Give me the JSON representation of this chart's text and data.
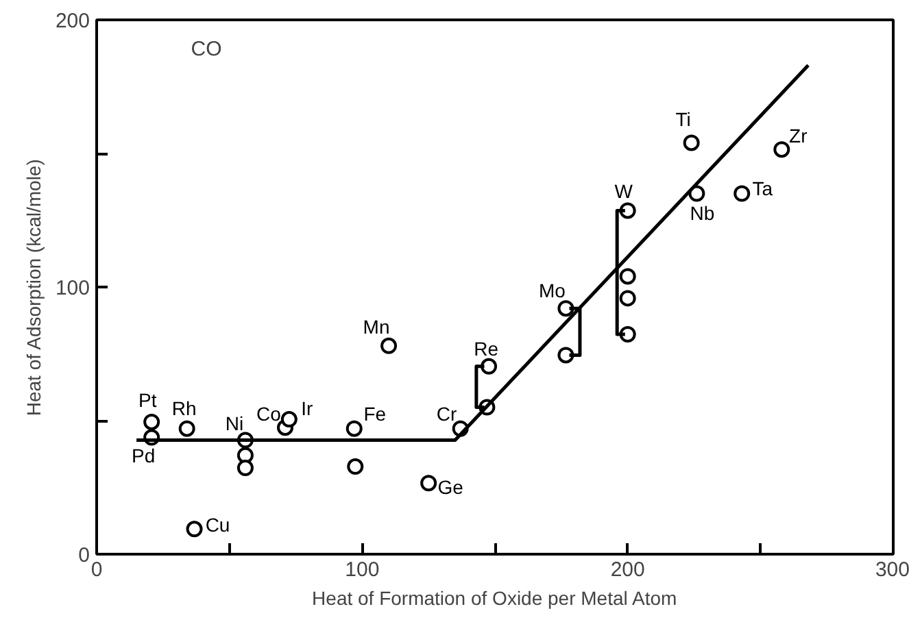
{
  "chart_data": {
    "type": "scatter",
    "xlabel": "Heat of Formation of Oxide per Metal Atom",
    "ylabel": "Heat of Adsorption (kcal/mole)",
    "xlim": [
      0,
      300
    ],
    "ylim": [
      0,
      200
    ],
    "xticks": [
      0,
      {
        "value": 50,
        "label": null
      },
      100,
      {
        "value": 150,
        "label": null
      },
      200,
      {
        "value": 250,
        "label": null
      },
      300
    ],
    "yticks": [
      0,
      {
        "value": 50,
        "label": null
      },
      100,
      {
        "value": 150,
        "label": null
      },
      200
    ],
    "grid": false,
    "marker": "circle",
    "series": [
      {
        "color": "#000000",
        "x": [
          20.7,
          20.7,
          34,
          56,
          56,
          56,
          71,
          72.5,
          97,
          97.4,
          125,
          36.8,
          137,
          110,
          147.7,
          147,
          176.7,
          176.7,
          200,
          200,
          200,
          200,
          224,
          226,
          243,
          258
        ],
        "values": [
          49.5,
          43.7,
          47,
          42.7,
          37,
          32.3,
          47.4,
          50.5,
          47,
          32.8,
          26.6,
          9.4,
          47,
          78,
          70.3,
          55,
          92,
          74.5,
          128.6,
          104,
          95.8,
          82.3,
          154,
          135,
          135,
          151.5
        ]
      },
      {
        "type": "line",
        "marker": "none",
        "color": "#000000",
        "x": [
          15,
          135,
          268
        ],
        "values": [
          42.7,
          42.7,
          183
        ]
      },
      {
        "type": "line",
        "marker": "none",
        "color": "#000000",
        "x": [
          146,
          143,
          143,
          146
        ],
        "values": [
          70.3,
          70.3,
          55,
          55
        ]
      },
      {
        "type": "line",
        "marker": "none",
        "color": "#000000",
        "x": [
          178,
          182,
          182,
          178
        ],
        "values": [
          92,
          92,
          74.5,
          74.5
        ]
      },
      {
        "type": "line",
        "marker": "none",
        "color": "#000000",
        "x": [
          199,
          196,
          196,
          199
        ],
        "values": [
          128.6,
          128.6,
          82.3,
          82.3
        ]
      }
    ],
    "annotations": [
      {
        "text": "Pt",
        "x": 20.7,
        "y": 49.5
      },
      {
        "text": "Pd",
        "x": 20.7,
        "y": 43.7
      },
      {
        "text": "Rh",
        "x": 34,
        "y": 47
      },
      {
        "text": "Ni",
        "x": 56,
        "y": 42.7
      },
      {
        "text": "Co",
        "x": 71,
        "y": 47.4
      },
      {
        "text": "Ir",
        "x": 72.5,
        "y": 50.5
      },
      {
        "text": "Fe",
        "x": 97,
        "y": 47
      },
      {
        "text": "Cr",
        "x": 137,
        "y": 47
      },
      {
        "text": "Ge",
        "x": 125,
        "y": 26.6
      },
      {
        "text": "Cu",
        "x": 36.8,
        "y": 9.4
      },
      {
        "text": "Mn",
        "x": 110,
        "y": 78
      },
      {
        "text": "Re",
        "x": 147.7,
        "y": 70.3
      },
      {
        "text": "Mo",
        "x": 176.7,
        "y": 92
      },
      {
        "text": "W",
        "x": 200,
        "y": 128.6
      },
      {
        "text": "Ti",
        "x": 224,
        "y": 154
      },
      {
        "text": "Nb",
        "x": 226,
        "y": 135
      },
      {
        "text": "Ta",
        "x": 243,
        "y": 135
      },
      {
        "text": "Zr",
        "x": 258,
        "y": 151.5
      },
      "CO"
    ]
  }
}
